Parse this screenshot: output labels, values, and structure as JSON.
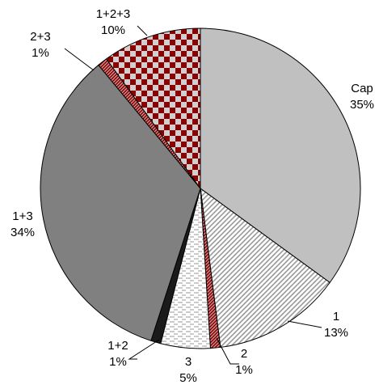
{
  "chart_data": {
    "type": "pie",
    "title": "",
    "slices": [
      {
        "label": "Cap",
        "value": 35,
        "pct": "35%",
        "pattern": "solid-light-gray"
      },
      {
        "label": "1",
        "value": 13,
        "pct": "13%",
        "pattern": "diagonal-hatch"
      },
      {
        "label": "2",
        "value": 1,
        "pct": "1%",
        "pattern": "red-diagonal-stripe"
      },
      {
        "label": "3",
        "value": 5,
        "pct": "5%",
        "pattern": "horizontal-dash"
      },
      {
        "label": "1+2",
        "value": 1,
        "pct": "1%",
        "pattern": "solid-black"
      },
      {
        "label": "1+3",
        "value": 34,
        "pct": "34%",
        "pattern": "solid-dark-gray"
      },
      {
        "label": "2+3",
        "value": 1,
        "pct": "1%",
        "pattern": "red-diagonal-stripe-alt"
      },
      {
        "label": "1+2+3",
        "value": 10,
        "pct": "10%",
        "pattern": "red-checkerboard"
      }
    ],
    "colors": {
      "light_gray": "#c0c0c0",
      "dark_gray": "#808080",
      "dark_red": "#8b0000",
      "black": "#1a1a1a",
      "outline": "#000000"
    }
  }
}
